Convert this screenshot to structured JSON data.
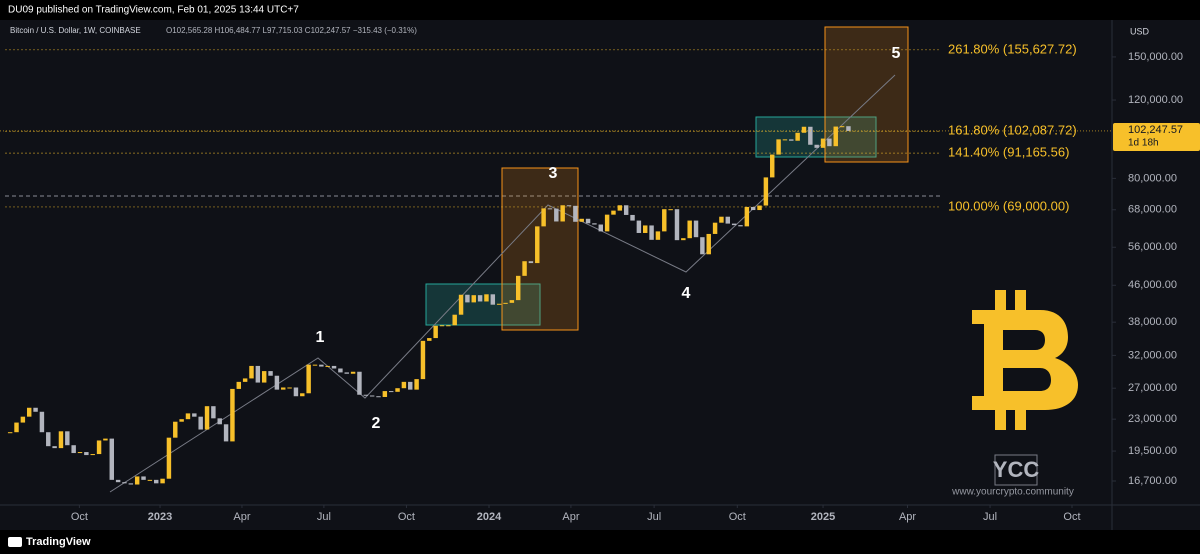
{
  "header": {
    "publisher": "DU09 published on TradingView.com, Feb 01, 2025 13:44 UTC+7"
  },
  "footer": {
    "brand": "TradingView"
  },
  "chart_data": {
    "type": "candlestick",
    "title": "Bitcoin / U.S. Dollar, 1W, COINBASE",
    "ohlc_text": "O102,565.28 H106,484.77 L97,715.03 C102,247.57 −315.43 (−0.31%)",
    "currency": "USD",
    "up_color": "#f7c02a",
    "down_color": "#b2b5be",
    "log_scale": true,
    "values": [
      21500,
      22600,
      23300,
      24400,
      23900,
      21500,
      20000,
      19800,
      21600,
      20100,
      19300,
      19400,
      19100,
      19200,
      20600,
      20800,
      16800,
      16600,
      16500,
      16400,
      17100,
      16800,
      16800,
      16500,
      16900,
      20900,
      22700,
      23000,
      23700,
      23300,
      21800,
      24600,
      23100,
      22400,
      20500,
      26900,
      27900,
      28400,
      30300,
      27800,
      29500,
      28800,
      26800,
      27100,
      27100,
      25900,
      26300,
      30500,
      30500,
      30200,
      30300,
      29900,
      29300,
      29100,
      29400,
      26100,
      26000,
      25900,
      25800,
      26600,
      26500,
      27000,
      27900,
      26800,
      28300,
      34500,
      35000,
      37300,
      37400,
      37400,
      39500,
      43800,
      42100,
      43700,
      42300,
      43900,
      41600,
      41800,
      42000,
      42600,
      48300,
      52100,
      51600,
      62400,
      68500,
      68400,
      64000,
      69600,
      69400,
      63900,
      64900,
      63400,
      63000,
      60800,
      66300,
      67700,
      69600,
      66200,
      64300,
      60300,
      62700,
      58200,
      60800,
      68200,
      68200,
      58100,
      58700,
      64300,
      59000,
      54000,
      60000,
      63600,
      65600,
      63300,
      62800,
      62400,
      69000,
      67900,
      69500,
      80400,
      90500,
      97900,
      97900,
      97200,
      101300,
      104500,
      95200,
      93700,
      98300,
      94500,
      104600,
      104800,
      102247.57
    ],
    "xlim": [
      -1.6,
      173.5
    ],
    "xticks": [
      {
        "value": 10.9,
        "label": "Oct"
      },
      {
        "value": 23.6,
        "label": "2023"
      },
      {
        "value": 36.5,
        "label": "Apr"
      },
      {
        "value": 49.4,
        "label": "Jul"
      },
      {
        "value": 62.4,
        "label": "Oct"
      },
      {
        "value": 75.4,
        "label": "2024"
      },
      {
        "value": 88.3,
        "label": "Apr"
      },
      {
        "value": 101.4,
        "label": "Jul"
      },
      {
        "value": 114.5,
        "label": "Oct"
      },
      {
        "value": 128.0,
        "label": "2025"
      },
      {
        "value": 141.3,
        "label": "Apr"
      },
      {
        "value": 154.3,
        "label": "Jul"
      },
      {
        "value": 167.2,
        "label": "Oct"
      }
    ],
    "ylim": [
      14750,
      181600
    ],
    "yticks": [
      {
        "value": 16700,
        "label": "16,700.00"
      },
      {
        "value": 19500,
        "label": "19,500.00"
      },
      {
        "value": 23000,
        "label": "23,000.00"
      },
      {
        "value": 27000,
        "label": "27,000.00"
      },
      {
        "value": 32000,
        "label": "32,000.00"
      },
      {
        "value": 38000,
        "label": "38,000.00"
      },
      {
        "value": 46000,
        "label": "46,000.00"
      },
      {
        "value": 56000,
        "label": "56,000.00"
      },
      {
        "value": 68000,
        "label": "68,000.00"
      },
      {
        "value": 80000,
        "label": "80,000.00"
      },
      {
        "value": 120000,
        "label": "120,000.00"
      },
      {
        "value": 150000,
        "label": "150,000.00"
      }
    ],
    "fib_levels": [
      {
        "value": 155627.72,
        "label": "261.80% (155,627.72)"
      },
      {
        "value": 102087.72,
        "label": "161.80% (102,087.72)"
      },
      {
        "value": 91165.56,
        "label": "141.40% (91,165.56)"
      },
      {
        "value": 69000,
        "label": "100.00% (69,000.00)"
      }
    ],
    "price_tag": {
      "value": 102247.57,
      "label": "102,247.57",
      "countdown": "1d 18h"
    },
    "wave_labels": [
      "1",
      "2",
      "3",
      "4",
      "5"
    ],
    "watermark": {
      "logo": "YCC",
      "url": "www.yourcrypto.community"
    }
  }
}
